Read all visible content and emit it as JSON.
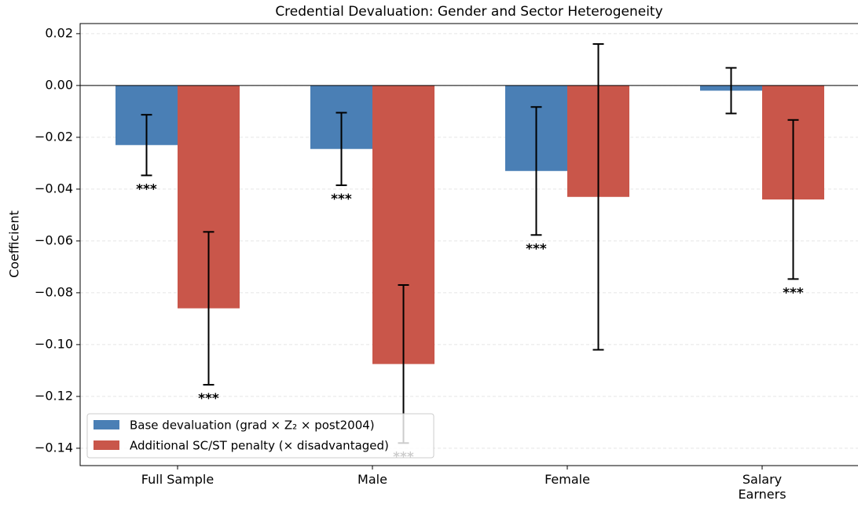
{
  "chart_data": {
    "type": "bar",
    "title": "Credential Devaluation: Gender and Sector Heterogeneity",
    "y_label": "Coefficient",
    "categories": [
      "Full Sample",
      "Male",
      "Female",
      "Salary Earners"
    ],
    "series": [
      {
        "name": "Base devaluation (grad × Z₂ × post2004)",
        "color": "#4a7fb5",
        "values": [
          -0.023,
          -0.0245,
          -0.033,
          -0.002
        ],
        "errors": [
          0.0117,
          0.014,
          0.0247,
          0.0088
        ],
        "significance": [
          "***",
          "***",
          "***",
          null
        ]
      },
      {
        "name": "Additional SC/ST penalty (× disadvantaged)",
        "color": "#c9564a",
        "values": [
          -0.086,
          -0.1075,
          -0.043,
          -0.044
        ],
        "errors": [
          0.0295,
          0.0305,
          0.059,
          0.0307
        ],
        "significance": [
          "***",
          "***",
          null,
          "***"
        ]
      }
    ],
    "ylim": [
      -0.1467,
      0.0239
    ],
    "yticks": [
      {
        "value": 0.02,
        "label": "0.02"
      },
      {
        "value": 0,
        "label": "0.00"
      },
      {
        "value": -0.02,
        "label": "−0.02"
      },
      {
        "value": -0.04,
        "label": "−0.04"
      },
      {
        "value": -0.06,
        "label": "−0.06"
      },
      {
        "value": -0.08,
        "label": "−0.08"
      },
      {
        "value": -0.1,
        "label": "−0.10"
      },
      {
        "value": -0.12,
        "label": "−0.12"
      },
      {
        "value": -0.14,
        "label": "−0.14"
      }
    ],
    "grid": true,
    "legend": "lower left"
  }
}
